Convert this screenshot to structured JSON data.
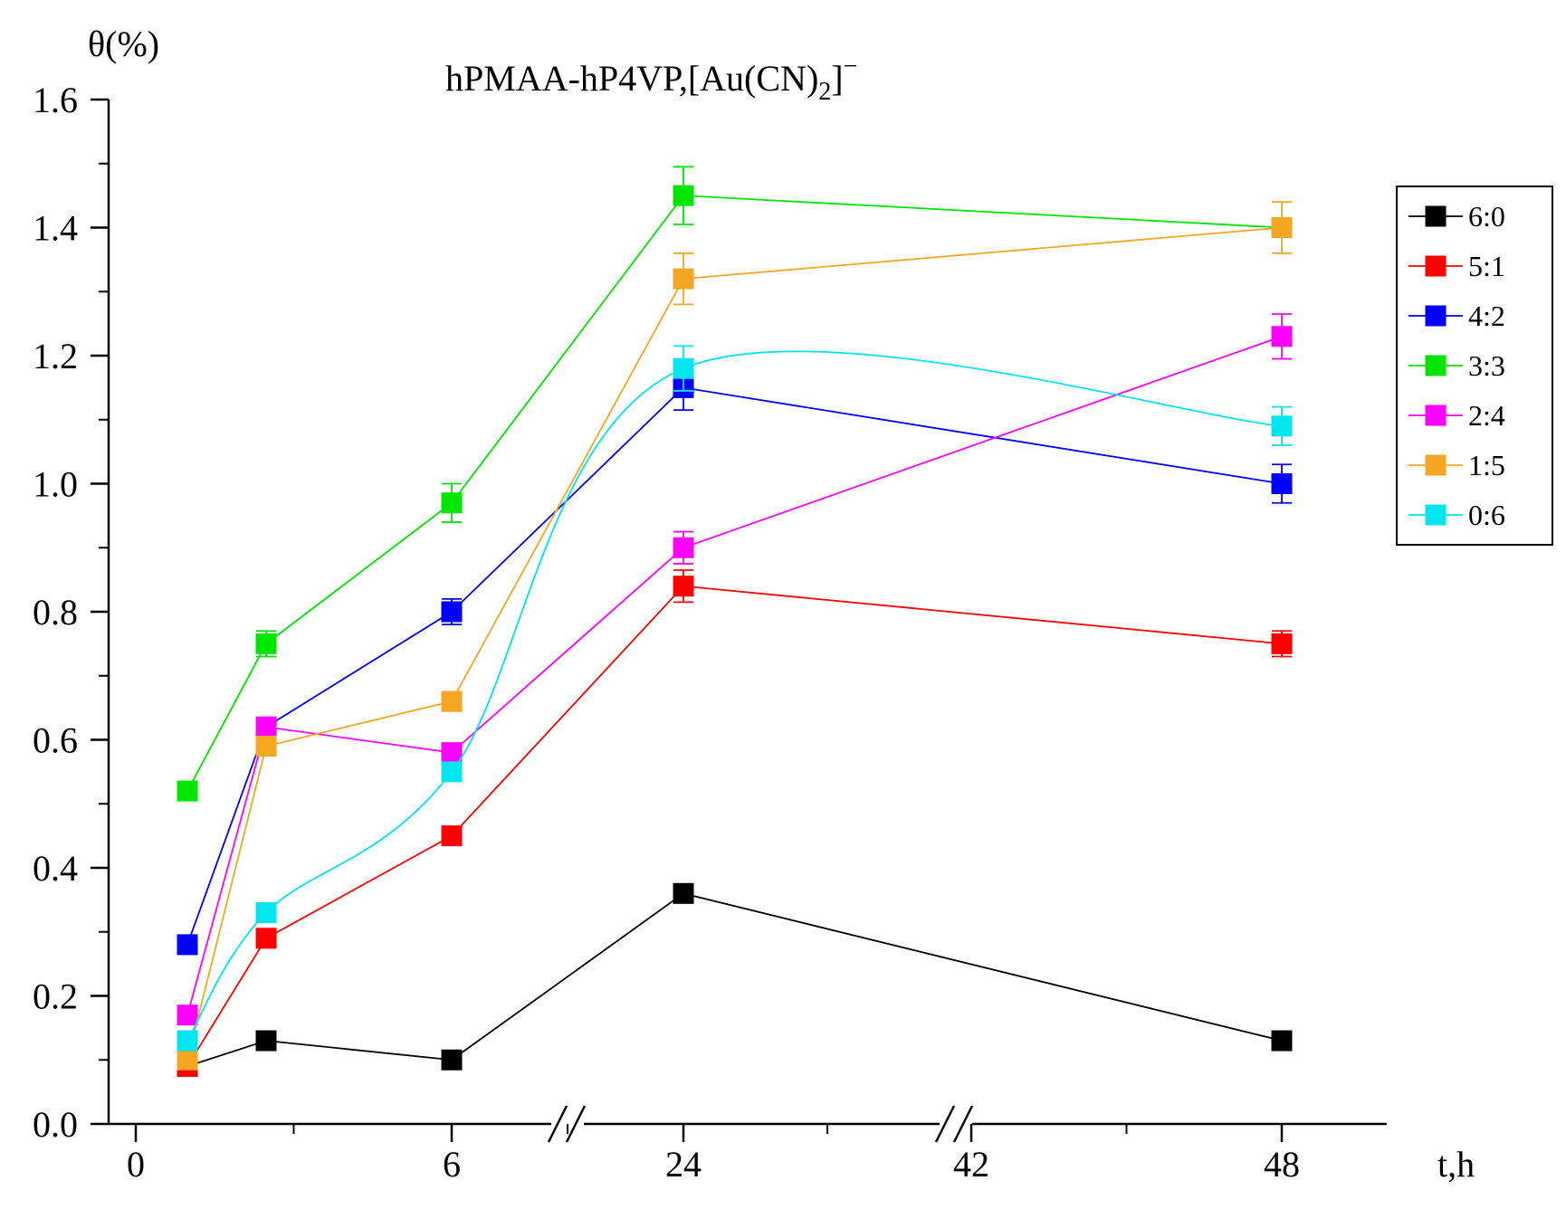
{
  "chart_data": {
    "type": "line",
    "title": "hPMAA-hP4VP,[Au(CN)",
    "title_sub": "2",
    "title_tail": "]",
    "title_sup": "−",
    "ylabel": "θ(%)",
    "xlabel": "t,h",
    "ylim": [
      0,
      1.6
    ],
    "y_ticks": [
      "0.0",
      "0.2",
      "0.4",
      "0.6",
      "0.8",
      "1.0",
      "1.2",
      "1.4",
      "1.6"
    ],
    "x_ticks": [
      "0",
      "6",
      "24",
      "42",
      "48"
    ],
    "x_axis_breaks": true,
    "legend_position": "right",
    "x": [
      1,
      3,
      6,
      24,
      48
    ],
    "series": [
      {
        "name": "6:0",
        "color": "#000000",
        "values": [
          0.09,
          0.13,
          0.1,
          0.36,
          0.13
        ],
        "errors": [
          0,
          0,
          0,
          0,
          0
        ],
        "curve": "straight"
      },
      {
        "name": "5:1",
        "color": "#ff0000",
        "values": [
          0.09,
          0.29,
          0.45,
          0.84,
          0.75
        ],
        "errors": [
          0,
          0,
          0,
          0.025,
          0.02
        ],
        "curve": "straight"
      },
      {
        "name": "4:2",
        "color": "#0000ff",
        "values": [
          0.28,
          0.62,
          0.8,
          1.15,
          1.0
        ],
        "errors": [
          0,
          0,
          0.02,
          0.035,
          0.03
        ],
        "curve": "straight"
      },
      {
        "name": "3:3",
        "color": "#00e600",
        "values": [
          0.52,
          0.75,
          0.97,
          1.45,
          1.4
        ],
        "errors": [
          0,
          0.02,
          0.03,
          0.045,
          0
        ],
        "curve": "straight"
      },
      {
        "name": "2:4",
        "color": "#ff00ff",
        "values": [
          0.17,
          0.62,
          0.58,
          0.9,
          1.23
        ],
        "errors": [
          0,
          0,
          0,
          0.025,
          0.035
        ],
        "curve": "straight"
      },
      {
        "name": "1:5",
        "color": "#f5a623",
        "values": [
          0.1,
          0.59,
          0.66,
          1.32,
          1.4
        ],
        "errors": [
          0,
          0,
          0.015,
          0.04,
          0.04
        ],
        "curve": "straight"
      },
      {
        "name": "0:6",
        "color": "#00e5ee",
        "values": [
          0.13,
          0.33,
          0.55,
          1.18,
          1.09
        ],
        "errors": [
          0,
          0,
          0,
          0.035,
          0.03
        ],
        "curve": "smooth"
      }
    ]
  }
}
